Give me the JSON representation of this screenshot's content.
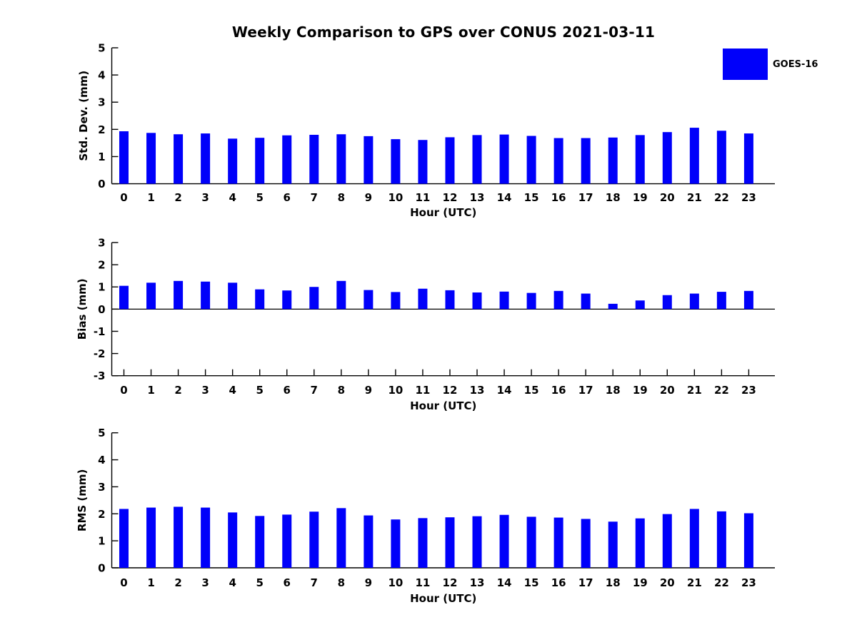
{
  "title": "Weekly Comparison to GPS over CONUS 2021-03-11",
  "legend": {
    "label": "GOES-16",
    "swatch_color": "#0000fa"
  },
  "colors": {
    "bar": "#0000fa",
    "axis": "#000000",
    "text": "#000000",
    "background": "#ffffff"
  },
  "chart_data": [
    {
      "type": "bar",
      "ylabel": "Std. Dev. (mm)",
      "xlabel": "Hour (UTC)",
      "ylim": [
        0,
        5
      ],
      "yticks": [
        0,
        1,
        2,
        3,
        4,
        5
      ],
      "grid": false,
      "legend_position": "outside-top-right",
      "categories": [
        "0",
        "1",
        "2",
        "3",
        "4",
        "5",
        "6",
        "7",
        "8",
        "9",
        "10",
        "11",
        "12",
        "13",
        "14",
        "15",
        "16",
        "17",
        "18",
        "19",
        "20",
        "21",
        "22",
        "23"
      ],
      "series": [
        {
          "name": "GOES-16",
          "values": [
            1.93,
            1.87,
            1.82,
            1.85,
            1.66,
            1.69,
            1.78,
            1.8,
            1.82,
            1.75,
            1.64,
            1.61,
            1.71,
            1.79,
            1.81,
            1.76,
            1.68,
            1.68,
            1.7,
            1.79,
            1.9,
            2.06,
            1.95,
            1.85
          ]
        }
      ]
    },
    {
      "type": "bar",
      "ylabel": "Bias (mm)",
      "xlabel": "Hour (UTC)",
      "ylim": [
        -3,
        3
      ],
      "yticks": [
        -3,
        -2,
        -1,
        0,
        1,
        2,
        3
      ],
      "grid": false,
      "categories": [
        "0",
        "1",
        "2",
        "3",
        "4",
        "5",
        "6",
        "7",
        "8",
        "9",
        "10",
        "11",
        "12",
        "13",
        "14",
        "15",
        "16",
        "17",
        "18",
        "19",
        "20",
        "21",
        "22",
        "23"
      ],
      "series": [
        {
          "name": "GOES-16",
          "values": [
            1.05,
            1.19,
            1.27,
            1.24,
            1.19,
            0.89,
            0.84,
            1.0,
            1.27,
            0.86,
            0.77,
            0.92,
            0.85,
            0.75,
            0.79,
            0.73,
            0.82,
            0.7,
            0.24,
            0.39,
            0.63,
            0.7,
            0.78,
            0.82
          ]
        }
      ]
    },
    {
      "type": "bar",
      "ylabel": "RMS (mm)",
      "xlabel": "Hour (UTC)",
      "ylim": [
        0,
        5
      ],
      "yticks": [
        0,
        1,
        2,
        3,
        4,
        5
      ],
      "grid": false,
      "categories": [
        "0",
        "1",
        "2",
        "3",
        "4",
        "5",
        "6",
        "7",
        "8",
        "9",
        "10",
        "11",
        "12",
        "13",
        "14",
        "15",
        "16",
        "17",
        "18",
        "19",
        "20",
        "21",
        "22",
        "23"
      ],
      "series": [
        {
          "name": "GOES-16",
          "values": [
            2.18,
            2.23,
            2.26,
            2.23,
            2.05,
            1.92,
            1.97,
            2.08,
            2.21,
            1.94,
            1.79,
            1.84,
            1.87,
            1.91,
            1.96,
            1.89,
            1.86,
            1.81,
            1.71,
            1.83,
            1.99,
            2.18,
            2.09,
            2.02
          ]
        }
      ]
    }
  ]
}
